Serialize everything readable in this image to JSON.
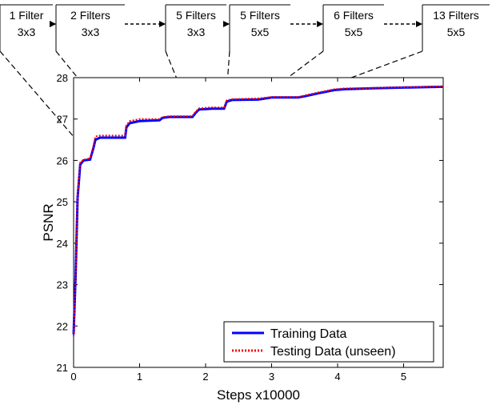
{
  "chart_data": {
    "type": "line",
    "xlabel": "Steps x10000",
    "ylabel": "PSNR",
    "xlim": [
      0,
      5.6
    ],
    "ylim": [
      21,
      28
    ],
    "x_ticks": [
      0,
      1,
      2,
      3,
      4,
      5
    ],
    "y_ticks": [
      21,
      22,
      23,
      24,
      25,
      26,
      27,
      28
    ],
    "grid": false,
    "legend_position": "bottom-right",
    "series": [
      {
        "name": "Training Data",
        "color": "#0000ff",
        "style": "solid",
        "x": [
          0.0,
          0.03,
          0.06,
          0.1,
          0.15,
          0.25,
          0.3,
          0.33,
          0.4,
          0.5,
          0.78,
          0.8,
          0.85,
          1.0,
          1.3,
          1.35,
          1.45,
          1.8,
          1.85,
          1.9,
          2.1,
          2.28,
          2.32,
          2.4,
          2.8,
          3.0,
          3.4,
          3.5,
          3.7,
          3.95,
          4.1,
          4.5,
          5.0,
          5.6
        ],
        "y": [
          21.8,
          23.2,
          25.1,
          25.9,
          26.0,
          26.02,
          26.3,
          26.5,
          26.55,
          26.55,
          26.55,
          26.8,
          26.9,
          26.95,
          26.97,
          27.03,
          27.05,
          27.05,
          27.15,
          27.23,
          27.25,
          27.25,
          27.42,
          27.46,
          27.47,
          27.52,
          27.52,
          27.55,
          27.62,
          27.7,
          27.72,
          27.74,
          27.76,
          27.78
        ]
      },
      {
        "name": "Testing Data (unseen)",
        "color": "#ff0000",
        "style": "dotted",
        "x": [
          0.0,
          0.03,
          0.06,
          0.1,
          0.15,
          0.25,
          0.3,
          0.33,
          0.4,
          0.5,
          0.78,
          0.8,
          0.85,
          1.0,
          1.3,
          1.35,
          1.45,
          1.8,
          1.85,
          1.9,
          2.1,
          2.28,
          2.32,
          2.4,
          2.8,
          3.0,
          3.4,
          3.5,
          3.7,
          3.95,
          4.1,
          4.5,
          5.0,
          5.6
        ],
        "y": [
          21.75,
          23.1,
          25.15,
          25.95,
          26.02,
          26.05,
          26.35,
          26.58,
          26.6,
          26.6,
          26.6,
          26.85,
          26.95,
          27.0,
          27.0,
          27.05,
          27.07,
          27.07,
          27.18,
          27.26,
          27.28,
          27.28,
          27.45,
          27.48,
          27.5,
          27.53,
          27.53,
          27.57,
          27.64,
          27.72,
          27.74,
          27.75,
          27.77,
          27.79
        ]
      }
    ],
    "annotations": [
      {
        "line1": "1 Filter",
        "line2": "3x3",
        "target_x": 0.3,
        "target_y": 26.02
      },
      {
        "line1": "2 Filters",
        "line2": "3x3",
        "target_x": 0.8,
        "target_y": 26.55
      },
      {
        "line1": "5 Filters",
        "line2": "3x3",
        "target_x": 1.8,
        "target_y": 27.05
      },
      {
        "line1": "5 Filters",
        "line2": "5x5",
        "target_x": 2.3,
        "target_y": 27.25
      },
      {
        "line1": "6 Filters",
        "line2": "5x5",
        "target_x": 2.8,
        "target_y": 27.47
      },
      {
        "line1": "13 Filters",
        "line2": "5x5",
        "target_x": 3.4,
        "target_y": 27.52
      }
    ]
  }
}
